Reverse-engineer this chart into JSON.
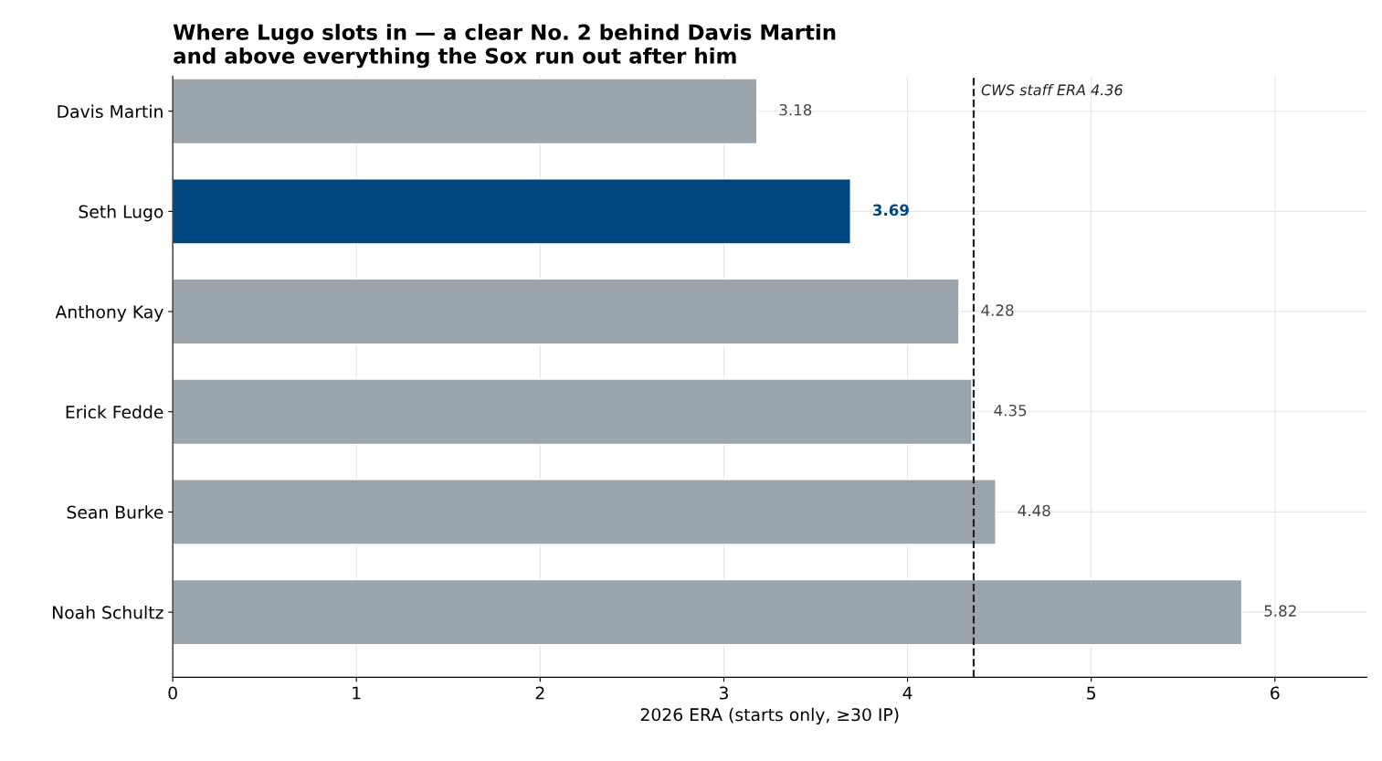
{
  "chart_data": {
    "type": "bar",
    "orientation": "horizontal",
    "title": "Where Lugo slots in — a clear No. 2 behind Davis Martin\nand above everything the Sox run out after him",
    "xlabel": "2026 ERA (starts only, ≥30 IP)",
    "categories": [
      "Davis Martin",
      "Seth Lugo",
      "Anthony Kay",
      "Erick Fedde",
      "Sean Burke",
      "Noah Schultz"
    ],
    "values": [
      3.18,
      3.69,
      4.28,
      4.35,
      4.48,
      5.82
    ],
    "colors": [
      "#9aa5ad",
      "#00467f",
      "#9aa5ad",
      "#9aa5ad",
      "#9aa5ad",
      "#9aa5ad"
    ],
    "data_labels": true,
    "xlim": [
      0,
      6.5
    ],
    "xticks": [
      0,
      1,
      2,
      3,
      4,
      5,
      6
    ],
    "grid": true,
    "ref_lines": [
      {
        "axis": "x",
        "value": 4.36,
        "label": "CWS staff ERA 4.36",
        "color": "#222222",
        "line_style": "dashed"
      }
    ]
  }
}
